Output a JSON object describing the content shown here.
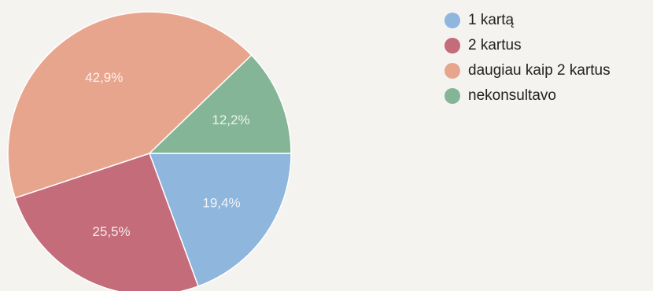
{
  "chart_data": {
    "type": "pie",
    "title": "",
    "slices": [
      {
        "label": "1 kartą",
        "value": 19.4,
        "display": "19,4%",
        "color": "#8fb6dc"
      },
      {
        "label": "2 kartus",
        "value": 25.5,
        "display": "25,5%",
        "color": "#c56c7a"
      },
      {
        "label": "daugiau kaip 2 kartus",
        "value": 42.9,
        "display": "42,9%",
        "color": "#e8a58e"
      },
      {
        "label": "nekonsultavo",
        "value": 12.2,
        "display": "12,2%",
        "color": "#84b596"
      }
    ],
    "legend_position": "right",
    "start_angle_deg": 0,
    "direction": "clockwise"
  }
}
